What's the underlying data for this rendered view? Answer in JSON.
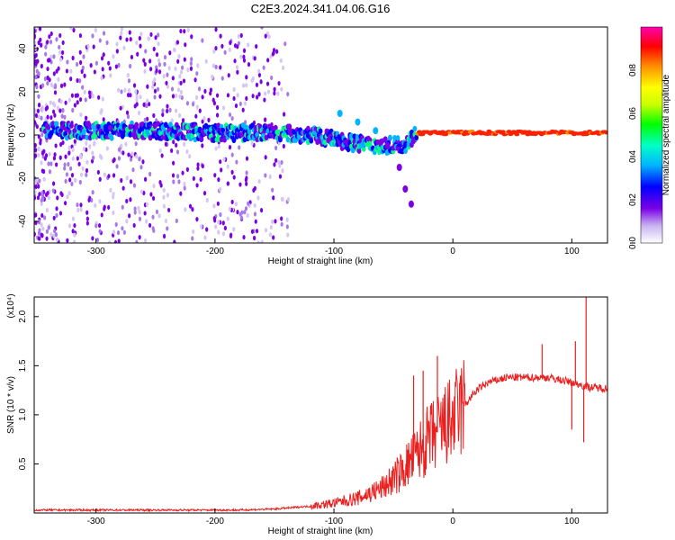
{
  "chart_data": [
    {
      "type": "heatmap",
      "title": "C2E3.2024.341.04.06.G16",
      "xlabel": "Height of straight line (km)",
      "ylabel": "Frequency (Hz)",
      "xlim": [
        -352,
        130
      ],
      "ylim": [
        -50,
        50
      ],
      "x_ticks": [
        -300,
        -200,
        -100,
        0,
        100
      ],
      "y_ticks": [
        -40,
        -20,
        0,
        20,
        40
      ],
      "colorbar": {
        "label": "Normalized spectral amplitude",
        "range": [
          0,
          1
        ],
        "ticks": [
          0.0,
          0.2,
          0.4,
          0.6,
          0.8
        ],
        "colormap": [
          "#ffffff",
          "#c8b4f0",
          "#7b00e6",
          "#0000ff",
          "#00b4ff",
          "#00ffc8",
          "#00ff00",
          "#c8ff00",
          "#ffff00",
          "#ff8c00",
          "#ff0000",
          "#ff00b4"
        ]
      },
      "ridge": [
        {
          "x": -340,
          "f": 2
        },
        {
          "x": -300,
          "f": 2
        },
        {
          "x": -250,
          "f": 2
        },
        {
          "x": -200,
          "f": 1
        },
        {
          "x": -150,
          "f": 1
        },
        {
          "x": -120,
          "f": 0
        },
        {
          "x": -100,
          "f": -2
        },
        {
          "x": -80,
          "f": -4
        },
        {
          "x": -60,
          "f": -5
        },
        {
          "x": -40,
          "f": -4
        },
        {
          "x": -30,
          "f": 1
        },
        {
          "x": 0,
          "f": 1
        },
        {
          "x": 50,
          "f": 1
        },
        {
          "x": 100,
          "f": 1
        },
        {
          "x": 130,
          "f": 1
        }
      ],
      "branch": [
        {
          "x": -95,
          "f": 10
        },
        {
          "x": -80,
          "f": 6
        },
        {
          "x": -65,
          "f": 2
        },
        {
          "x": -55,
          "f": -5
        },
        {
          "x": -45,
          "f": -15
        },
        {
          "x": -40,
          "f": -25
        },
        {
          "x": -35,
          "f": -32
        }
      ]
    },
    {
      "type": "line",
      "title": "",
      "xlabel": "Height of straight line (km)",
      "ylabel": "SNR (10 * v/v)",
      "y_multiplier": "(x10⁴)",
      "xlim": [
        -352,
        130
      ],
      "ylim": [
        0,
        2.2
      ],
      "x_ticks": [
        -300,
        -200,
        -100,
        0,
        100
      ],
      "y_ticks": [
        0.5,
        1.0,
        1.5,
        2.0
      ],
      "color": "#e82020",
      "envelope": [
        {
          "x": -352,
          "y": 0.03
        },
        {
          "x": -250,
          "y": 0.03
        },
        {
          "x": -180,
          "y": 0.03
        },
        {
          "x": -150,
          "y": 0.04
        },
        {
          "x": -120,
          "y": 0.07
        },
        {
          "x": -100,
          "y": 0.1
        },
        {
          "x": -80,
          "y": 0.15
        },
        {
          "x": -60,
          "y": 0.25
        },
        {
          "x": -45,
          "y": 0.4
        },
        {
          "x": -30,
          "y": 0.6
        },
        {
          "x": -20,
          "y": 0.75
        },
        {
          "x": -10,
          "y": 0.85
        },
        {
          "x": 0,
          "y": 0.95
        },
        {
          "x": 10,
          "y": 1.1
        },
        {
          "x": 20,
          "y": 1.25
        },
        {
          "x": 30,
          "y": 1.33
        },
        {
          "x": 45,
          "y": 1.38
        },
        {
          "x": 60,
          "y": 1.38
        },
        {
          "x": 80,
          "y": 1.38
        },
        {
          "x": 100,
          "y": 1.33
        },
        {
          "x": 115,
          "y": 1.28
        },
        {
          "x": 130,
          "y": 1.27
        }
      ],
      "spikes": [
        {
          "x": -33,
          "y": 1.4
        },
        {
          "x": -25,
          "y": 1.45
        },
        {
          "x": -13,
          "y": 1.6
        },
        {
          "x": 75,
          "y": 1.72
        },
        {
          "x": 103,
          "y": 1.75
        },
        {
          "x": 112,
          "y": 2.2
        },
        {
          "x": 110,
          "y": 0.72
        },
        {
          "x": 100,
          "y": 0.85
        }
      ]
    }
  ]
}
